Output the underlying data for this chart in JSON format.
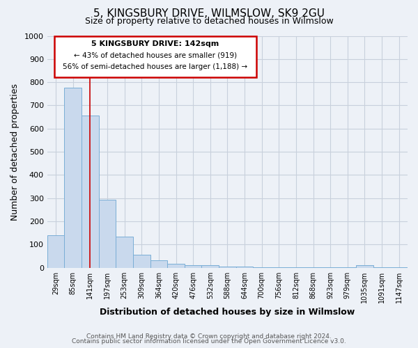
{
  "title": "5, KINGSBURY DRIVE, WILMSLOW, SK9 2GU",
  "subtitle": "Size of property relative to detached houses in Wilmslow",
  "xlabel": "Distribution of detached houses by size in Wilmslow",
  "ylabel": "Number of detached properties",
  "bar_labels": [
    "29sqm",
    "85sqm",
    "141sqm",
    "197sqm",
    "253sqm",
    "309sqm",
    "364sqm",
    "420sqm",
    "476sqm",
    "532sqm",
    "588sqm",
    "644sqm",
    "700sqm",
    "756sqm",
    "812sqm",
    "868sqm",
    "923sqm",
    "979sqm",
    "1035sqm",
    "1091sqm",
    "1147sqm"
  ],
  "bar_values": [
    140,
    775,
    655,
    293,
    135,
    57,
    33,
    18,
    10,
    10,
    5,
    5,
    2,
    2,
    2,
    2,
    2,
    2,
    10,
    2,
    2
  ],
  "bar_color": "#c9d9ed",
  "bar_edge_color": "#7aaed6",
  "vline_x": 2,
  "vline_color": "#cc0000",
  "ylim": [
    0,
    1000
  ],
  "yticks": [
    0,
    100,
    200,
    300,
    400,
    500,
    600,
    700,
    800,
    900,
    1000
  ],
  "box_text_line1": "5 KINGSBURY DRIVE: 142sqm",
  "box_text_line2": "← 43% of detached houses are smaller (919)",
  "box_text_line3": "56% of semi-detached houses are larger (1,188) →",
  "box_color": "#cc0000",
  "footnote1": "Contains HM Land Registry data © Crown copyright and database right 2024.",
  "footnote2": "Contains public sector information licensed under the Open Government Licence v3.0.",
  "background_color": "#edf1f7",
  "grid_color": "#c8d0dc"
}
